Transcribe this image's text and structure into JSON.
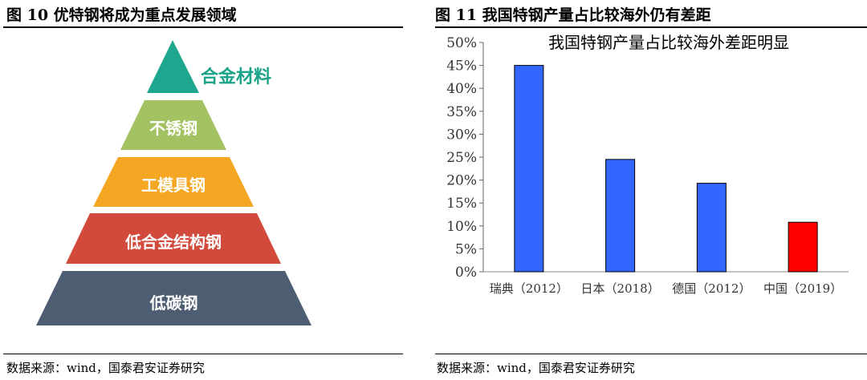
{
  "left_figure": {
    "title": "图 10    优特钢将成为重点发展领域",
    "source": "数据来源：wind，国泰君安证券研究",
    "tiers": [
      {
        "label": "合金材料",
        "color": "#1fa68e"
      },
      {
        "label": "不锈钢",
        "color": "#a3c262"
      },
      {
        "label": "工模具钢",
        "color": "#f5a623"
      },
      {
        "label": "低合金结构钢",
        "color": "#d24a3c"
      },
      {
        "label": "低碳钢",
        "color": "#4d5d72"
      }
    ]
  },
  "right_figure": {
    "title": "图 11    我国特钢产量占比较海外仍有差距",
    "source": "数据来源：wind，国泰君安证券研究"
  },
  "chart_data": {
    "type": "bar",
    "title": "我国特钢产量占比较海外差距明显",
    "categories": [
      "瑞典（2012）",
      "日本（2018）",
      "德国（2012）",
      "中国（2019）"
    ],
    "values": [
      45,
      24.5,
      19.3,
      10.8
    ],
    "colors": [
      "#3366ff",
      "#3366ff",
      "#3366ff",
      "#ff0000"
    ],
    "ylim": [
      0,
      50
    ],
    "yticks": [
      "0%",
      "5%",
      "10%",
      "15%",
      "20%",
      "25%",
      "30%",
      "35%",
      "40%",
      "45%",
      "50%"
    ],
    "grid": false
  }
}
